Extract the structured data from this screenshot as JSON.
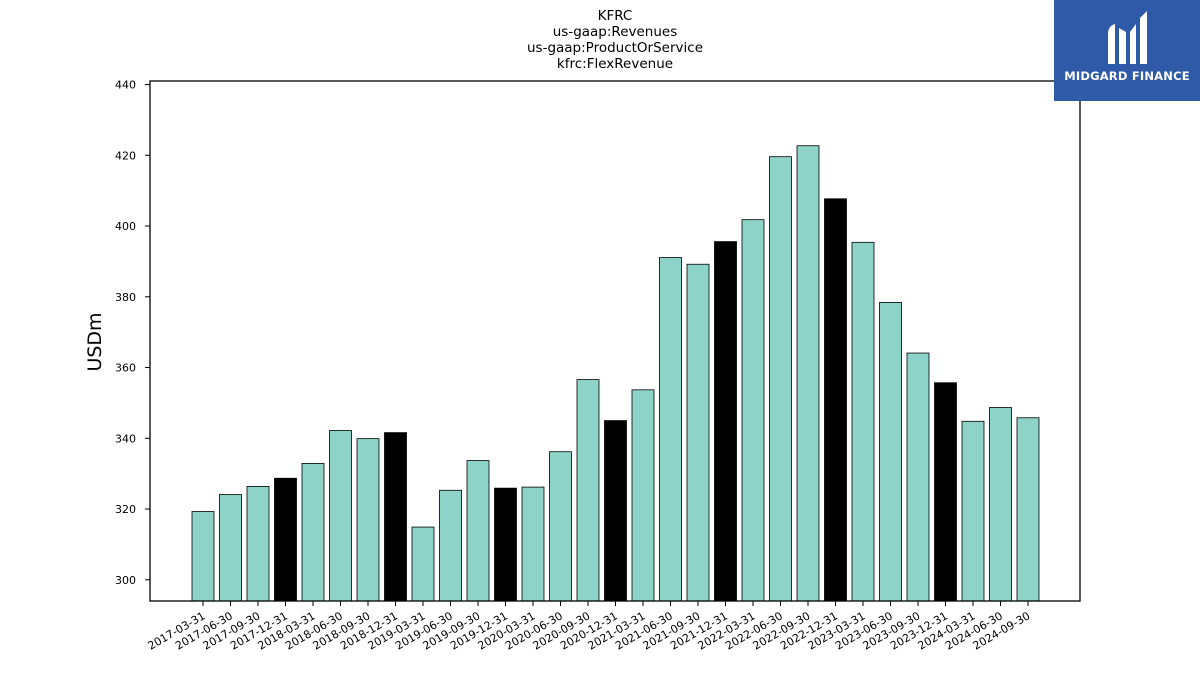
{
  "chart_data": {
    "type": "bar",
    "title_lines": [
      "KFRC",
      "us-gaap:Revenues",
      "us-gaap:ProductOrService",
      "kfrc:FlexRevenue"
    ],
    "xlabel": "",
    "ylabel": "USDm",
    "ylim": [
      294,
      441
    ],
    "yticks": [
      300,
      320,
      340,
      360,
      380,
      400,
      420,
      440
    ],
    "grid": false,
    "categories": [
      "2017-03-31",
      "2017-06-30",
      "2017-09-30",
      "2017-12-31",
      "2018-03-31",
      "2018-06-30",
      "2018-09-30",
      "2018-12-31",
      "2019-03-31",
      "2019-06-30",
      "2019-09-30",
      "2019-12-31",
      "2020-03-31",
      "2020-06-30",
      "2020-09-30",
      "2020-12-31",
      "2021-03-31",
      "2021-06-30",
      "2021-09-30",
      "2021-12-31",
      "2022-03-31",
      "2022-06-30",
      "2022-09-30",
      "2022-12-31",
      "2023-03-31",
      "2023-06-30",
      "2023-09-30",
      "2023-12-31",
      "2024-03-31",
      "2024-06-30",
      "2024-09-30"
    ],
    "values": [
      319.3,
      324.1,
      326.4,
      328.7,
      332.9,
      342.2,
      339.9,
      341.6,
      314.9,
      325.3,
      333.7,
      325.9,
      326.2,
      336.2,
      356.6,
      345.0,
      353.7,
      391.1,
      389.2,
      395.6,
      401.8,
      419.6,
      422.7,
      407.7,
      395.4,
      378.4,
      364.1,
      355.7,
      344.8,
      348.7,
      345.8
    ],
    "highlight": [
      false,
      false,
      false,
      true,
      false,
      false,
      false,
      true,
      false,
      false,
      false,
      true,
      false,
      false,
      false,
      true,
      false,
      false,
      false,
      true,
      false,
      false,
      false,
      true,
      false,
      false,
      false,
      true,
      false,
      false,
      false
    ],
    "colors": {
      "bar": "#8dd3c7",
      "highlight": "#000000",
      "edge": "#000000"
    }
  },
  "logo": {
    "text": "MIDGARD FINANCE",
    "background": "#2f5aa8"
  }
}
